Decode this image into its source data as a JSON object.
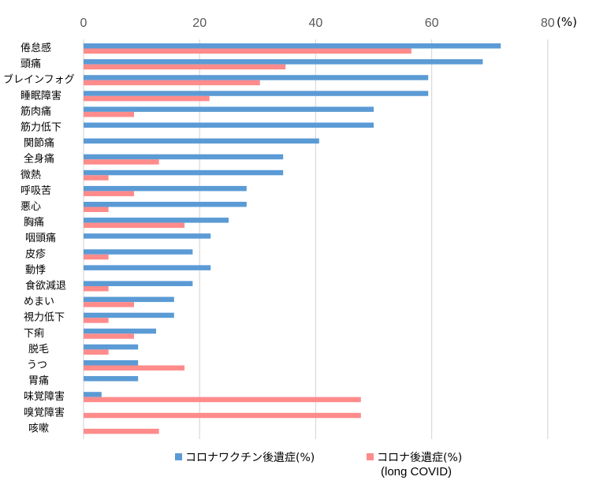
{
  "chart_data": {
    "type": "bar",
    "orientation": "horizontal",
    "title": "",
    "xlabel": "",
    "xunit": "(%)",
    "xlim": [
      0,
      80
    ],
    "xticks": [
      0,
      20,
      40,
      60,
      80
    ],
    "grid": true,
    "legend_position": "bottom",
    "categories": [
      "倦怠感",
      "頭痛",
      "ブレインフォグ",
      "睡眠障害",
      "筋肉痛",
      "筋力低下",
      "関節痛",
      "全身痛",
      "微熱",
      "呼吸苦",
      "悪心",
      "胸痛",
      "咽頭痛",
      "皮疹",
      "動悸",
      "食欲減退",
      "めまい",
      "視力低下",
      "下痢",
      "脱毛",
      "うつ",
      "胃痛",
      "味覚障害",
      "嗅覚障害",
      "咳嗽"
    ],
    "series": [
      {
        "name": "コロナワクチン後遺症(%)",
        "color": "#5b9bd5",
        "values": [
          71.9,
          68.8,
          59.4,
          59.4,
          50.0,
          50.0,
          40.6,
          34.4,
          34.4,
          28.1,
          28.1,
          25.0,
          21.9,
          18.8,
          21.9,
          18.8,
          15.6,
          15.6,
          12.5,
          9.4,
          9.4,
          9.4,
          3.1,
          0,
          0
        ]
      },
      {
        "name": "コロナ後遺症(%)",
        "name_sub": "(long COVID)",
        "color": "#ff8b8b",
        "values": [
          56.5,
          34.8,
          30.4,
          21.7,
          8.7,
          0,
          0,
          13.0,
          4.3,
          8.7,
          4.3,
          17.4,
          0,
          4.3,
          0,
          4.3,
          8.7,
          4.3,
          8.7,
          4.3,
          17.4,
          0,
          47.8,
          47.8,
          13.0
        ]
      }
    ]
  }
}
